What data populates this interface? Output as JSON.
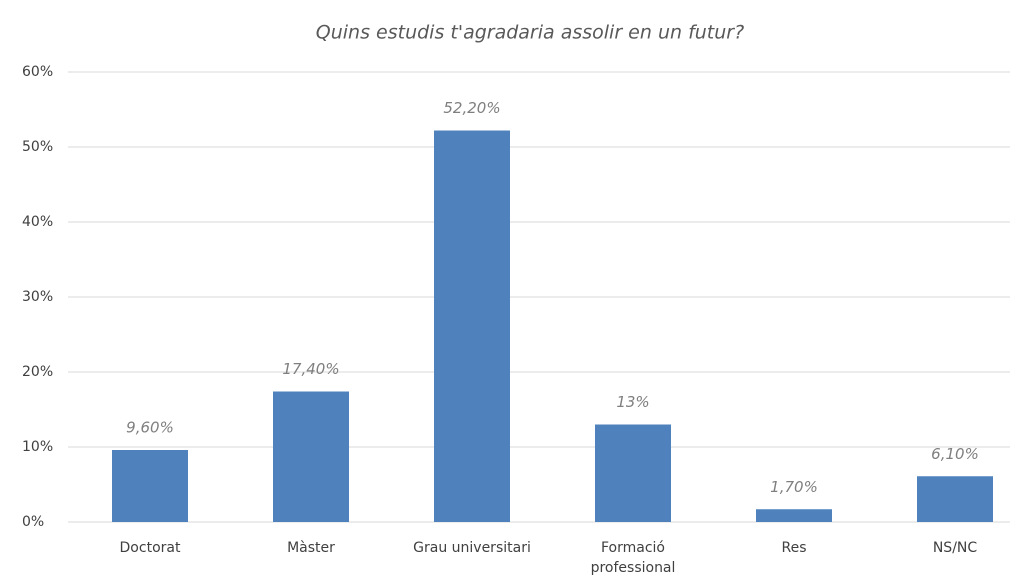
{
  "chart_data": {
    "type": "bar",
    "title": "Quins estudis t'agradaria assolir en un futur?",
    "categories": [
      "Doctorat",
      "Màster",
      "Grau universitari",
      "Formació professional",
      "Res",
      "NS/NC"
    ],
    "values": [
      9.6,
      17.4,
      52.2,
      13,
      1.7,
      6.1
    ],
    "value_labels": [
      "9,60%",
      "17,40%",
      "52,20%",
      "13%",
      "1,70%",
      "6,10%"
    ],
    "color": "#4f81bd",
    "ylim": [
      0,
      60
    ],
    "yticks": [
      {
        "value": 0,
        "label": "0%"
      },
      {
        "value": 10,
        "label": "10%"
      },
      {
        "value": 20,
        "label": "20%"
      },
      {
        "value": 30,
        "label": "30%"
      },
      {
        "value": 40,
        "label": "40%"
      },
      {
        "value": 50,
        "label": "50%"
      },
      {
        "value": 60,
        "label": "60%"
      }
    ],
    "grid": true
  }
}
